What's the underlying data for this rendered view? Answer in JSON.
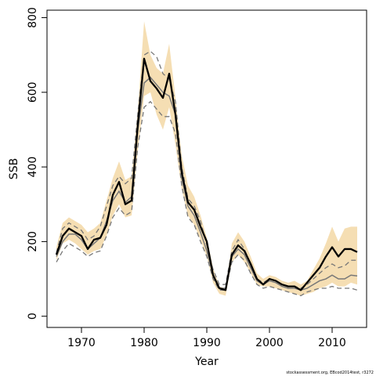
{
  "chart_data": {
    "type": "line",
    "title": "",
    "xlabel": "Year",
    "ylabel": "SSB",
    "xlim": [
      1964.5,
      2015.5
    ],
    "ylim": [
      -30,
      820
    ],
    "x_ticks": [
      1970,
      1980,
      1990,
      2000,
      2010
    ],
    "y_ticks": [
      0,
      200,
      400,
      600,
      800
    ],
    "grid": false,
    "legend": "none",
    "credit": "stockassessment.org, EBcod2014test, r3272",
    "colors": {
      "band": "#f5deb3",
      "estimate": "#000000",
      "median": "#777777",
      "interval": "#777777"
    },
    "x": [
      1966,
      1967,
      1968,
      1969,
      1970,
      1971,
      1972,
      1973,
      1974,
      1975,
      1976,
      1977,
      1978,
      1979,
      1980,
      1981,
      1982,
      1983,
      1984,
      1985,
      1986,
      1987,
      1988,
      1989,
      1990,
      1991,
      1992,
      1993,
      1994,
      1995,
      1996,
      1997,
      1998,
      1999,
      2000,
      2001,
      2002,
      2003,
      2004,
      2005,
      2006,
      2007,
      2008,
      2009,
      2010,
      2011,
      2012,
      2013,
      2014
    ],
    "series": [
      {
        "role": "band-upper",
        "values": [
          185,
          250,
          265,
          255,
          245,
          225,
          235,
          250,
          310,
          370,
          415,
          365,
          375,
          555,
          790,
          700,
          665,
          650,
          730,
          585,
          430,
          350,
          320,
          270,
          210,
          130,
          80,
          75,
          195,
          225,
          200,
          160,
          115,
          100,
          110,
          105,
          95,
          90,
          95,
          85,
          95,
          125,
          155,
          195,
          240,
          200,
          235,
          240,
          240
        ]
      },
      {
        "role": "band-lower",
        "values": [
          150,
          195,
          205,
          195,
          180,
          165,
          175,
          180,
          215,
          270,
          300,
          265,
          270,
          445,
          590,
          600,
          540,
          500,
          560,
          460,
          340,
          270,
          245,
          205,
          160,
          90,
          60,
          55,
          145,
          165,
          145,
          115,
          85,
          80,
          80,
          75,
          70,
          65,
          60,
          55,
          60,
          65,
          75,
          80,
          90,
          80,
          80,
          90,
          85
        ]
      },
      {
        "role": "interval-upper",
        "values": [
          170,
          235,
          250,
          240,
          230,
          205,
          215,
          240,
          295,
          350,
          375,
          355,
          370,
          545,
          700,
          710,
          695,
          650,
          635,
          575,
          400,
          315,
          295,
          255,
          190,
          125,
          85,
          85,
          175,
          205,
          180,
          140,
          100,
          90,
          100,
          95,
          85,
          80,
          80,
          75,
          85,
          100,
          115,
          130,
          140,
          130,
          135,
          150,
          150
        ]
      },
      {
        "role": "interval-lower",
        "values": [
          145,
          175,
          195,
          185,
          175,
          160,
          170,
          175,
          215,
          265,
          290,
          270,
          280,
          455,
          560,
          575,
          555,
          535,
          535,
          490,
          350,
          265,
          245,
          200,
          160,
          100,
          70,
          70,
          145,
          165,
          150,
          115,
          85,
          75,
          80,
          75,
          70,
          65,
          60,
          55,
          65,
          70,
          75,
          75,
          80,
          75,
          75,
          75,
          70
        ]
      },
      {
        "role": "median",
        "values": [
          160,
          200,
          220,
          220,
          205,
          180,
          195,
          210,
          255,
          310,
          335,
          305,
          320,
          500,
          625,
          640,
          620,
          600,
          590,
          540,
          370,
          295,
          270,
          225,
          175,
          110,
          75,
          75,
          160,
          180,
          165,
          130,
          95,
          85,
          95,
          90,
          80,
          75,
          75,
          70,
          75,
          85,
          95,
          100,
          110,
          100,
          100,
          110,
          108
        ]
      },
      {
        "role": "estimate",
        "values": [
          165,
          215,
          235,
          225,
          215,
          180,
          205,
          210,
          245,
          325,
          360,
          300,
          310,
          515,
          690,
          630,
          610,
          585,
          650,
          540,
          385,
          305,
          285,
          240,
          200,
          110,
          75,
          70,
          165,
          190,
          175,
          140,
          100,
          85,
          100,
          95,
          85,
          80,
          80,
          70,
          90,
          110,
          130,
          160,
          185,
          160,
          180,
          180,
          172
        ]
      }
    ]
  }
}
